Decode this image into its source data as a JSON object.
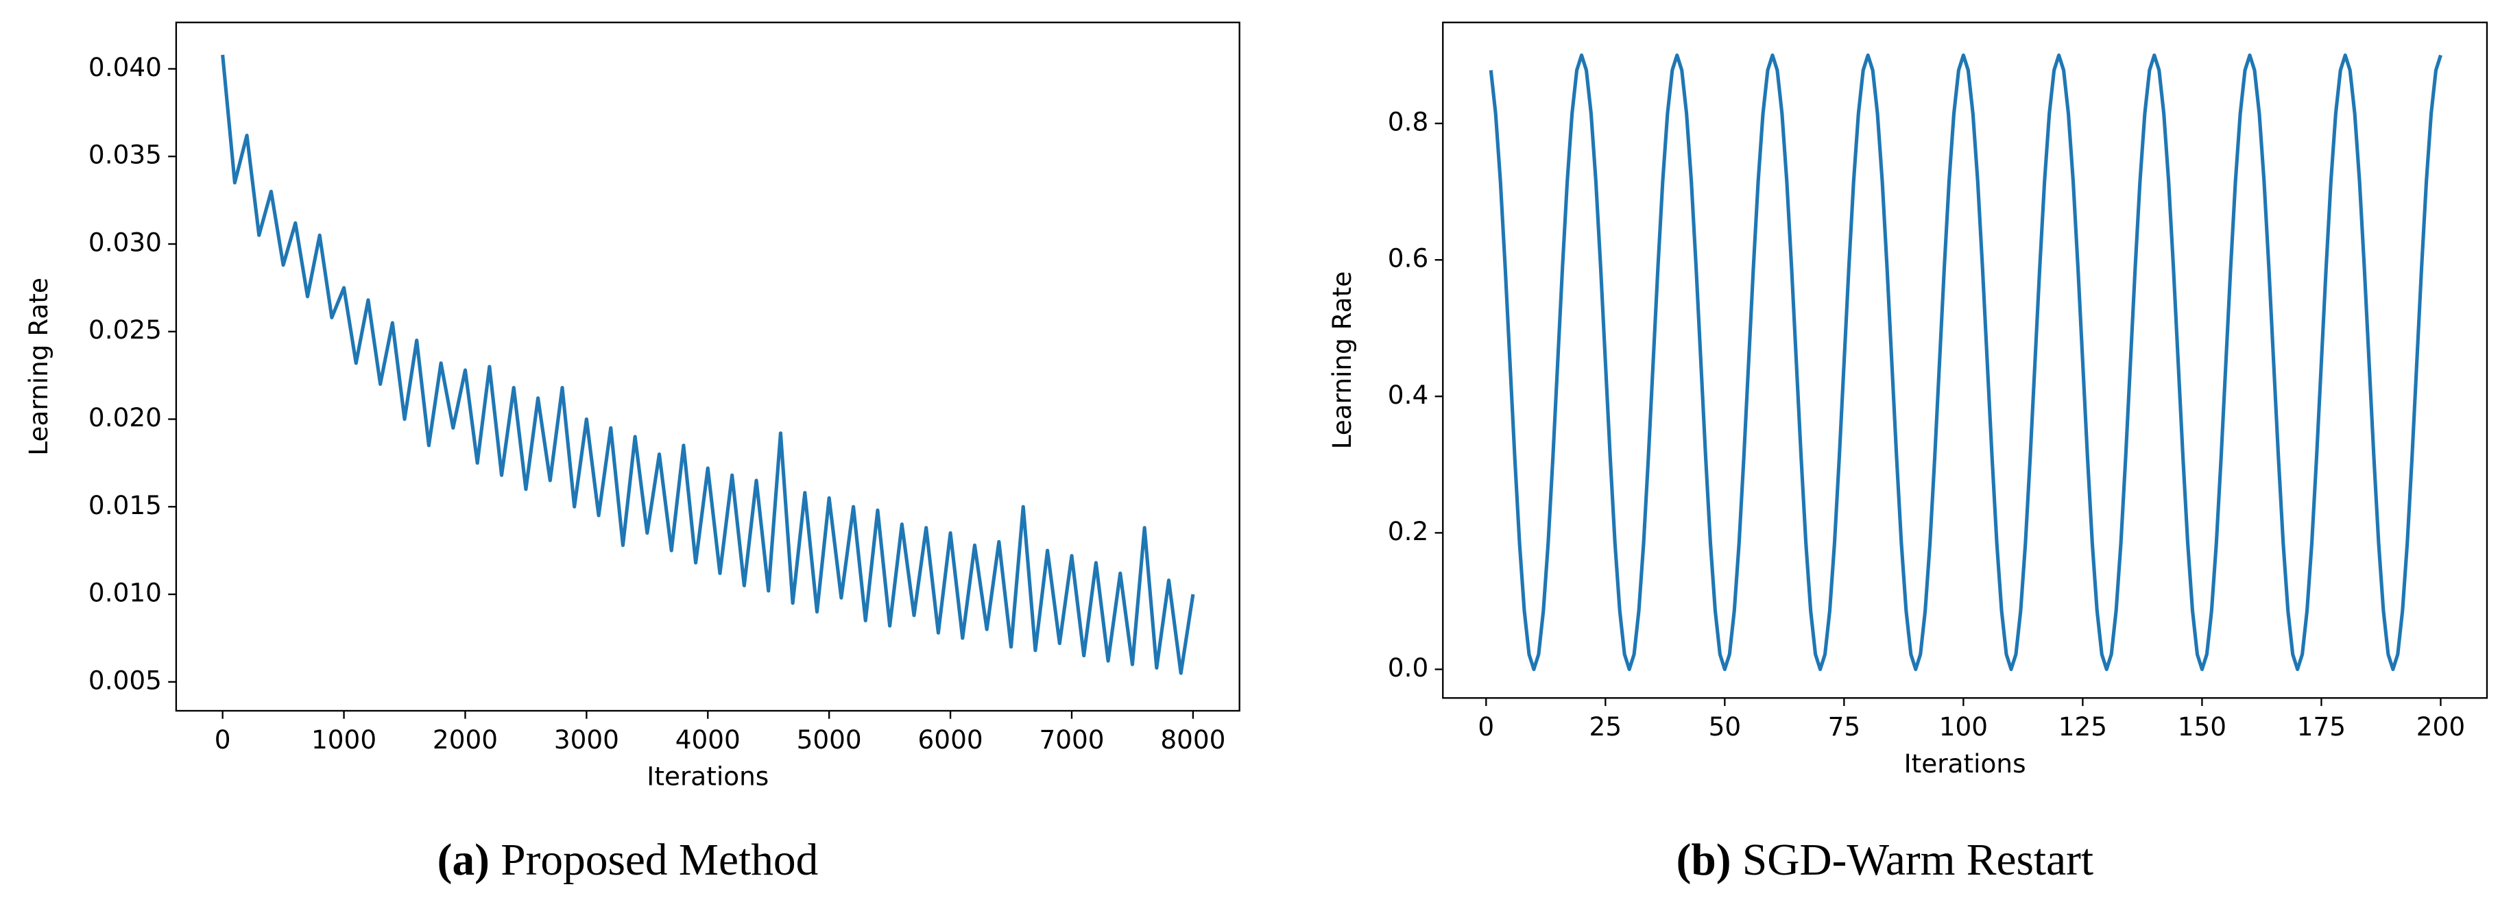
{
  "chart_data": [
    {
      "type": "line",
      "caption_label": "(a)",
      "caption": "Proposed Method",
      "xlabel": "Iterations",
      "ylabel": "Learning Rate",
      "xlim": [
        -383,
        8383
      ],
      "ylim": [
        0.00335,
        0.04265
      ],
      "xticks": [
        0,
        1000,
        2000,
        3000,
        4000,
        5000,
        6000,
        7000,
        8000
      ],
      "yticks": [
        0.005,
        {
          "value": 0.01,
          "label": "0.010"
        },
        0.015,
        {
          "value": 0.02,
          "label": "0.020"
        },
        0.025,
        {
          "value": 0.03,
          "label": "0.030"
        },
        0.035,
        {
          "value": 0.04,
          "label": "0.040"
        }
      ],
      "x": [
        0,
        100,
        200,
        300,
        400,
        500,
        600,
        700,
        800,
        900,
        1000,
        1100,
        1200,
        1300,
        1400,
        1500,
        1600,
        1700,
        1800,
        1900,
        2000,
        2100,
        2200,
        2300,
        2400,
        2500,
        2600,
        2700,
        2800,
        2900,
        3000,
        3100,
        3200,
        3300,
        3400,
        3500,
        3600,
        3700,
        3800,
        3900,
        4000,
        4100,
        4200,
        4300,
        4400,
        4500,
        4600,
        4700,
        4800,
        4900,
        5000,
        5100,
        5200,
        5300,
        5400,
        5500,
        5600,
        5700,
        5800,
        5900,
        6000,
        6100,
        6200,
        6300,
        6400,
        6500,
        6600,
        6700,
        6800,
        6900,
        7000,
        7100,
        7200,
        7300,
        7400,
        7500,
        7600,
        7700,
        7800,
        7900,
        8000
      ],
      "series": [
        {
          "color": "#1f77b4",
          "values": [
            0.0408,
            0.0335,
            0.0362,
            0.0305,
            0.033,
            0.0288,
            0.0312,
            0.027,
            0.0305,
            0.0258,
            0.0275,
            0.0232,
            0.0268,
            0.022,
            0.0255,
            0.02,
            0.0245,
            0.0185,
            0.0232,
            0.0195,
            0.0228,
            0.0175,
            0.023,
            0.0168,
            0.0218,
            0.016,
            0.0212,
            0.0165,
            0.0218,
            0.015,
            0.02,
            0.0145,
            0.0195,
            0.0128,
            0.019,
            0.0135,
            0.018,
            0.0125,
            0.0185,
            0.0118,
            0.0172,
            0.0112,
            0.0168,
            0.0105,
            0.0165,
            0.0102,
            0.0192,
            0.0095,
            0.0158,
            0.009,
            0.0155,
            0.0098,
            0.015,
            0.0085,
            0.0148,
            0.0082,
            0.014,
            0.0088,
            0.0138,
            0.0078,
            0.0135,
            0.0075,
            0.0128,
            0.008,
            0.013,
            0.007,
            0.015,
            0.0068,
            0.0125,
            0.0072,
            0.0122,
            0.0065,
            0.0118,
            0.0062,
            0.0112,
            0.006,
            0.0138,
            0.0058,
            0.0108,
            0.0055,
            0.01
          ]
        }
      ]
    },
    {
      "type": "line",
      "caption_label": "(b)",
      "caption": "SGD-Warm Restart",
      "xlabel": "Iterations",
      "ylabel": "Learning Rate",
      "xlim": [
        -9.06,
        209.7
      ],
      "ylim": [
        -0.042,
        0.948
      ],
      "xticks": [
        0,
        25,
        50,
        75,
        100,
        125,
        150,
        175,
        200
      ],
      "yticks": [
        {
          "value": 0,
          "label": "0.0"
        },
        0.2,
        0.4,
        0.6,
        0.8
      ],
      "x": [
        1,
        2,
        3,
        4,
        5,
        6,
        7,
        8,
        9,
        10,
        11,
        12,
        13,
        14,
        15,
        16,
        17,
        18,
        19,
        20,
        21,
        22,
        23,
        24,
        25,
        26,
        27,
        28,
        29,
        30,
        31,
        32,
        33,
        34,
        35,
        36,
        37,
        38,
        39,
        40,
        41,
        42,
        43,
        44,
        45,
        46,
        47,
        48,
        49,
        50,
        51,
        52,
        53,
        54,
        55,
        56,
        57,
        58,
        59,
        60,
        61,
        62,
        63,
        64,
        65,
        66,
        67,
        68,
        69,
        70,
        71,
        72,
        73,
        74,
        75,
        76,
        77,
        78,
        79,
        80,
        81,
        82,
        83,
        84,
        85,
        86,
        87,
        88,
        89,
        90,
        91,
        92,
        93,
        94,
        95,
        96,
        97,
        98,
        99,
        100,
        101,
        102,
        103,
        104,
        105,
        106,
        107,
        108,
        109,
        110,
        111,
        112,
        113,
        114,
        115,
        116,
        117,
        118,
        119,
        120,
        121,
        122,
        123,
        124,
        125,
        126,
        127,
        128,
        129,
        130,
        131,
        132,
        133,
        134,
        135,
        136,
        137,
        138,
        139,
        140,
        141,
        142,
        143,
        144,
        145,
        146,
        147,
        148,
        149,
        150,
        151,
        152,
        153,
        154,
        155,
        156,
        157,
        158,
        159,
        160,
        161,
        162,
        163,
        164,
        165,
        166,
        167,
        168,
        169,
        170,
        171,
        172,
        173,
        174,
        175,
        176,
        177,
        178,
        179,
        180,
        181,
        182,
        183,
        184,
        185,
        186,
        187,
        188,
        189,
        190,
        191,
        192,
        193,
        194,
        195,
        196,
        197,
        198,
        199,
        200
      ],
      "series": [
        {
          "color": "#1f77b4",
          "values": [
            0.878,
            0.814,
            0.715,
            0.589,
            0.45,
            0.311,
            0.185,
            0.086,
            0.022,
            0,
            0.022,
            0.086,
            0.185,
            0.311,
            0.45,
            0.589,
            0.715,
            0.814,
            0.878,
            0.9,
            0.878,
            0.814,
            0.715,
            0.589,
            0.45,
            0.311,
            0.185,
            0.086,
            0.022,
            0,
            0.022,
            0.086,
            0.185,
            0.311,
            0.45,
            0.589,
            0.715,
            0.814,
            0.878,
            0.9,
            0.878,
            0.814,
            0.715,
            0.589,
            0.45,
            0.311,
            0.185,
            0.086,
            0.022,
            0,
            0.022,
            0.086,
            0.185,
            0.311,
            0.45,
            0.589,
            0.715,
            0.814,
            0.878,
            0.9,
            0.878,
            0.814,
            0.715,
            0.589,
            0.45,
            0.311,
            0.185,
            0.086,
            0.022,
            0,
            0.022,
            0.086,
            0.185,
            0.311,
            0.45,
            0.589,
            0.715,
            0.814,
            0.878,
            0.9,
            0.878,
            0.814,
            0.715,
            0.589,
            0.45,
            0.311,
            0.185,
            0.086,
            0.022,
            0,
            0.022,
            0.086,
            0.185,
            0.311,
            0.45,
            0.589,
            0.715,
            0.814,
            0.878,
            0.9,
            0.878,
            0.814,
            0.715,
            0.589,
            0.45,
            0.311,
            0.185,
            0.086,
            0.022,
            0,
            0.022,
            0.086,
            0.185,
            0.311,
            0.45,
            0.589,
            0.715,
            0.814,
            0.878,
            0.9,
            0.878,
            0.814,
            0.715,
            0.589,
            0.45,
            0.311,
            0.185,
            0.086,
            0.022,
            0,
            0.022,
            0.086,
            0.185,
            0.311,
            0.45,
            0.589,
            0.715,
            0.814,
            0.878,
            0.9,
            0.878,
            0.814,
            0.715,
            0.589,
            0.45,
            0.311,
            0.185,
            0.086,
            0.022,
            0,
            0.022,
            0.086,
            0.185,
            0.311,
            0.45,
            0.589,
            0.715,
            0.814,
            0.878,
            0.9,
            0.878,
            0.814,
            0.715,
            0.589,
            0.45,
            0.311,
            0.185,
            0.086,
            0.022,
            0,
            0.022,
            0.086,
            0.185,
            0.311,
            0.45,
            0.589,
            0.715,
            0.814,
            0.878,
            0.9,
            0.878,
            0.814,
            0.715,
            0.589,
            0.45,
            0.311,
            0.185,
            0.086,
            0.022,
            0,
            0.022,
            0.086,
            0.185,
            0.311,
            0.45,
            0.589,
            0.715,
            0.814,
            0.878,
            0.9
          ]
        }
      ]
    }
  ]
}
